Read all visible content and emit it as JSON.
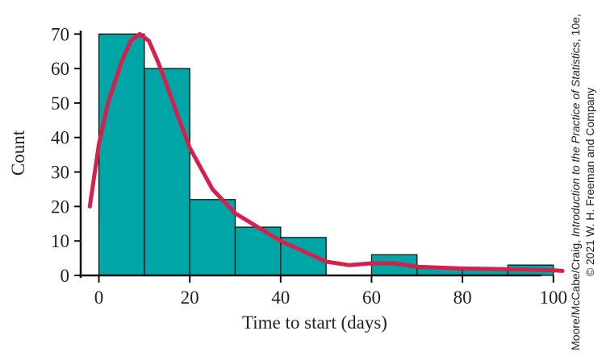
{
  "chart_data": {
    "type": "histogram",
    "x_label": "Time to start (days)",
    "y_label": "Count",
    "bins": [
      0,
      10,
      20,
      30,
      40,
      50,
      60,
      70,
      80,
      90,
      100
    ],
    "values": [
      70,
      60,
      22,
      14,
      11,
      0,
      6,
      2,
      2,
      3
    ],
    "color": "#00a6a6",
    "curve": {
      "color": "#d61f4b",
      "x": [
        -2,
        0,
        2,
        5,
        7,
        9,
        11,
        13,
        15,
        18,
        20,
        25,
        30,
        35,
        40,
        45,
        50,
        55,
        60,
        65,
        70,
        80,
        90,
        100,
        102
      ],
      "y": [
        20,
        38,
        50,
        62,
        68,
        70,
        68,
        62,
        55,
        44,
        37,
        25,
        18,
        14,
        10,
        7,
        4,
        3,
        3.5,
        3.5,
        2.5,
        2,
        1.8,
        1.5,
        1.3
      ]
    },
    "xlim": [
      -4,
      102
    ],
    "xticks": [
      0,
      20,
      40,
      60,
      80,
      100
    ],
    "ylim": [
      0,
      71
    ],
    "yticks": [
      0,
      10,
      20,
      30,
      40,
      50,
      60,
      70
    ],
    "grid": false,
    "credit": {
      "authors": "Moore/McCabe/Craig, ",
      "book": "Introduction to the Practice of Statistics",
      "edition": ", 10e,",
      "publisher": "© 2021 W. H. Freeman and Company"
    }
  }
}
